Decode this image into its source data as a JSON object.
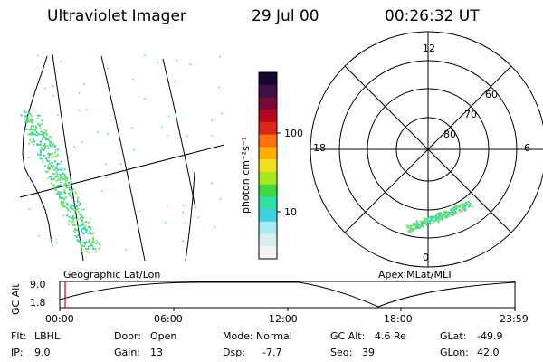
{
  "header": {
    "instrument": "Ultraviolet Imager",
    "date": "29 Jul 00",
    "time": "00:26:32 UT"
  },
  "geo_panel": {
    "label": "Geographic Lat/Lon"
  },
  "polar_panel": {
    "label": "Apex MLat/MLT",
    "mlt_labels": {
      "top": "12",
      "left": "18",
      "right": "6",
      "bottom": "0"
    },
    "lat_labels": [
      "60",
      "70",
      "80"
    ]
  },
  "colorbar": {
    "unit_label": "photon cm⁻²s⁻¹",
    "ticks": [
      "100",
      "10"
    ],
    "colors": [
      "#180830",
      "#3c1048",
      "#780838",
      "#b40820",
      "#d82818",
      "#ff7010",
      "#ffb000",
      "#f0e020",
      "#a8e820",
      "#40d840",
      "#30e0a8",
      "#40d0e0",
      "#a8ecf0",
      "#d8f0f2",
      "#f4f4f4"
    ]
  },
  "altitude_plot": {
    "ylabel": "GC Alt",
    "yticks": [
      "9.0",
      "1.8"
    ],
    "xticks": [
      "00:00",
      "06:00",
      "12:00",
      "18:00",
      "23:59"
    ]
  },
  "footer": {
    "filt_label": "Flt:",
    "filt_value": "LBHL",
    "ip_label": "IP:",
    "ip_value": "9.0",
    "door_label": "Door:",
    "door_value": "Open",
    "gain_label": "Gain:",
    "gain_value": "13",
    "mode_label": "Mode:",
    "mode_value": "Normal",
    "dsp_label": "Dsp:",
    "dsp_value": "-7.7",
    "gcalt_label": "GC Alt:",
    "gcalt_value": "4.6 Re",
    "seq_label": "Seq:",
    "seq_value": "39",
    "glat_label": "GLat:",
    "glat_value": "-49.9",
    "glon_label": "GLon:",
    "glon_value": "42.0"
  }
}
